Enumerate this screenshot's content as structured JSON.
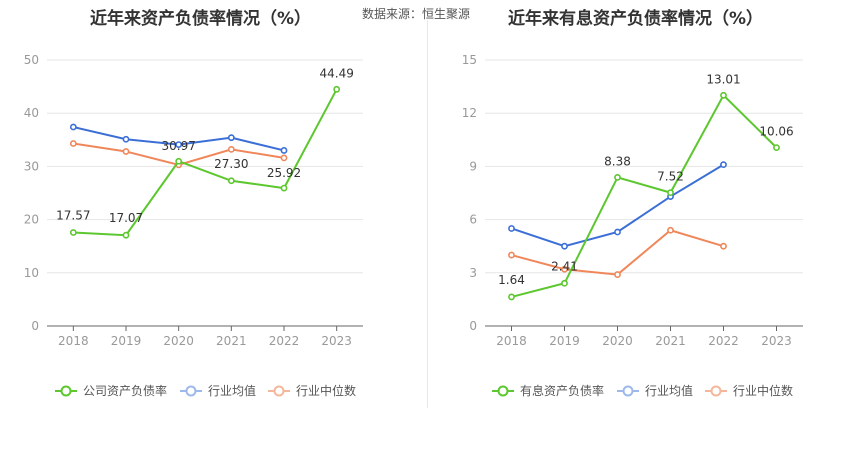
{
  "source_label": "数据来源：恒生聚源",
  "chart_data": [
    {
      "type": "line",
      "title": "近年来资产负债率情况（%）",
      "categories": [
        "2018",
        "2019",
        "2020",
        "2021",
        "2022",
        "2023"
      ],
      "ylim": [
        0,
        50
      ],
      "yticks": [
        0,
        10,
        20,
        30,
        40,
        50
      ],
      "legend_position": "bottom",
      "series": [
        {
          "name": "公司资产负债率",
          "values": [
            17.57,
            17.07,
            30.97,
            27.3,
            25.92,
            44.49
          ],
          "color": "#5cc72e",
          "labeled": true,
          "labels": [
            "17.57",
            "17.07",
            "30.97",
            "27.30",
            "25.92",
            "44.49"
          ]
        },
        {
          "name": "行业均值",
          "values": [
            37.4,
            35.1,
            34.1,
            35.4,
            33.0,
            null
          ],
          "color": "#3b6fd6",
          "labeled": false
        },
        {
          "name": "行业中位数",
          "values": [
            34.3,
            32.8,
            30.3,
            33.2,
            31.6,
            null
          ],
          "color": "#f0875a",
          "labeled": false
        }
      ]
    },
    {
      "type": "line",
      "title": "近年来有息资产负债率情况（%）",
      "categories": [
        "2018",
        "2019",
        "2020",
        "2021",
        "2022",
        "2023"
      ],
      "ylim": [
        0,
        15
      ],
      "yticks": [
        0,
        3,
        6,
        9,
        12,
        15
      ],
      "legend_position": "bottom",
      "series": [
        {
          "name": "有息资产负债率",
          "values": [
            1.64,
            2.41,
            8.38,
            7.52,
            13.01,
            10.06
          ],
          "color": "#5cc72e",
          "labeled": true,
          "labels": [
            "1.64",
            "2.41",
            "8.38",
            "7.52",
            "13.01",
            "10.06"
          ]
        },
        {
          "name": "行业均值",
          "values": [
            5.5,
            4.5,
            5.3,
            7.3,
            9.1,
            null
          ],
          "color": "#3b6fd6",
          "labeled": false
        },
        {
          "name": "行业中位数",
          "values": [
            4.0,
            3.2,
            2.9,
            5.4,
            4.5,
            null
          ],
          "color": "#f0875a",
          "labeled": false
        }
      ]
    }
  ]
}
